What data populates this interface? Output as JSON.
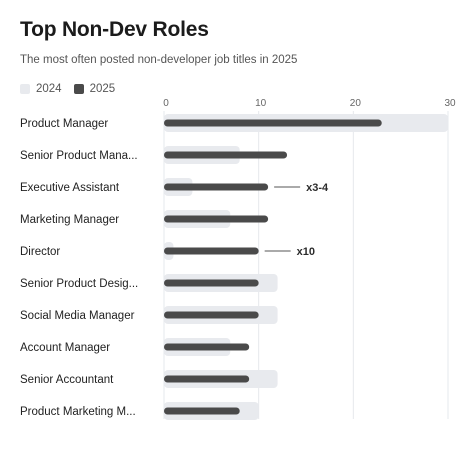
{
  "chart_data": {
    "type": "bar",
    "orientation": "horizontal",
    "title": "Top Non-Dev Roles",
    "subtitle": "The most often posted non-developer job titles in 2025",
    "xlim": [
      0,
      30
    ],
    "xticks": [
      0,
      10,
      20,
      30
    ],
    "grid": true,
    "legend_position": "top-left",
    "categories": [
      "Product Manager",
      "Senior Product Mana...",
      "Executive Assistant",
      "Marketing Manager",
      "Director",
      "Senior Product Desig...",
      "Social Media Manager",
      "Account Manager",
      "Senior Accountant",
      "Product Marketing M..."
    ],
    "series": [
      {
        "name": "2024",
        "color": "#e8eaee",
        "values": [
          30,
          8,
          3,
          7,
          1,
          12,
          12,
          7,
          12,
          10
        ]
      },
      {
        "name": "2025",
        "color": "#4a4a4a",
        "values": [
          23,
          13,
          11,
          11,
          10,
          10,
          10,
          9,
          9,
          8
        ]
      }
    ],
    "annotations": [
      {
        "category_index": 2,
        "text": "x3-4"
      },
      {
        "category_index": 4,
        "text": "x10"
      }
    ]
  }
}
